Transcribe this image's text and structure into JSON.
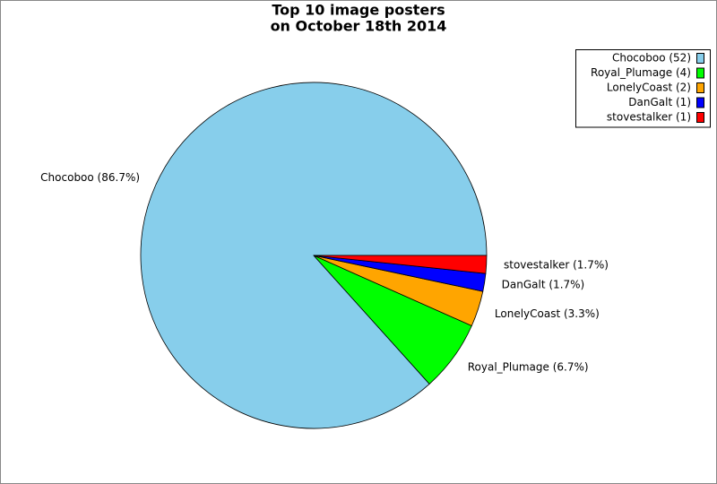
{
  "chart_data": {
    "type": "pie",
    "title": [
      "Top 10 image posters",
      "on October 18th 2014"
    ],
    "categories": [
      "Chocoboo",
      "Royal_Plumage",
      "LonelyCoast",
      "DanGalt",
      "stovestalker"
    ],
    "values": [
      52,
      4,
      2,
      1,
      1
    ],
    "legend_labels": [
      "Chocoboo (52)",
      "Royal_Plumage (4)",
      "LonelyCoast (2)",
      "DanGalt (1)",
      "stovestalker (1)"
    ],
    "value_labels": [
      "Chocoboo (86.7%)",
      "Royal_Plumage (6.7%)",
      "LonelyCoast (3.3%)",
      "DanGalt (1.7%)",
      "stovestalker (1.7%)"
    ],
    "colors": [
      "#87ceeb",
      "#00ff00",
      "#ffa500",
      "#0000ff",
      "#ff0000"
    ],
    "legend": "upper right"
  }
}
